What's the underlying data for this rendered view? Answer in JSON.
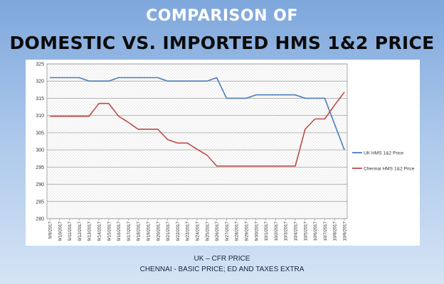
{
  "header": {
    "title_line1": "COMPARISON OF",
    "title_line2": "DOMESTIC VS. IMPORTED HMS 1&2 PRICE"
  },
  "footer": {
    "note1": "UK – CFR PRICE",
    "note2": "CHENNAI - BASIC PRICE; ED AND TAXES EXTRA"
  },
  "chart_data": {
    "type": "line",
    "title": "COMPARISON OF DOMESTIC VS. IMPORTED HMS 1&2 PRICE",
    "xlabel": "",
    "ylabel": "",
    "ylim": [
      280,
      325
    ],
    "yticks": [
      280,
      285,
      290,
      295,
      300,
      305,
      310,
      315,
      320,
      325
    ],
    "grid": true,
    "legend_position": "right",
    "categories": [
      "9/9/2017",
      "9/10/2017",
      "9/11/2017",
      "9/12/2017",
      "9/13/2017",
      "9/14/2017",
      "9/15/2017",
      "9/16/2017",
      "9/17/2017",
      "9/18/2017",
      "9/19/2017",
      "9/20/2017",
      "9/21/2017",
      "9/22/2017",
      "9/23/2017",
      "9/24/2017",
      "9/25/2017",
      "9/26/2017",
      "9/27/2017",
      "9/28/2017",
      "9/29/2017",
      "9/30/2017",
      "10/1/2017",
      "10/2/2017",
      "10/3/2017",
      "10/4/2017",
      "10/5/2017",
      "10/6/2017",
      "10/7/2017",
      "10/8/2017",
      "10/9/2017"
    ],
    "series": [
      {
        "name": "UK HMS 1&2 Price",
        "color": "#4a7ebb",
        "values": [
          321,
          321,
          321,
          321,
          320,
          320,
          320,
          321,
          321,
          321,
          321,
          321,
          320,
          320,
          320,
          320,
          320,
          321,
          315,
          315,
          315,
          316,
          316,
          316,
          316,
          316,
          315,
          315,
          315,
          307.5,
          300
        ]
      },
      {
        "name": "Chennai HMS 1&2 Price",
        "color": "#be4b48",
        "values": [
          309.8,
          309.8,
          309.8,
          309.8,
          309.8,
          313.5,
          313.5,
          309.8,
          308,
          306,
          306,
          306,
          303,
          302,
          302,
          300.2,
          298.5,
          295.3,
          295.3,
          295.3,
          295.3,
          295.3,
          295.3,
          295.3,
          295.3,
          295.3,
          306,
          309,
          309,
          313,
          316.8
        ]
      }
    ]
  }
}
